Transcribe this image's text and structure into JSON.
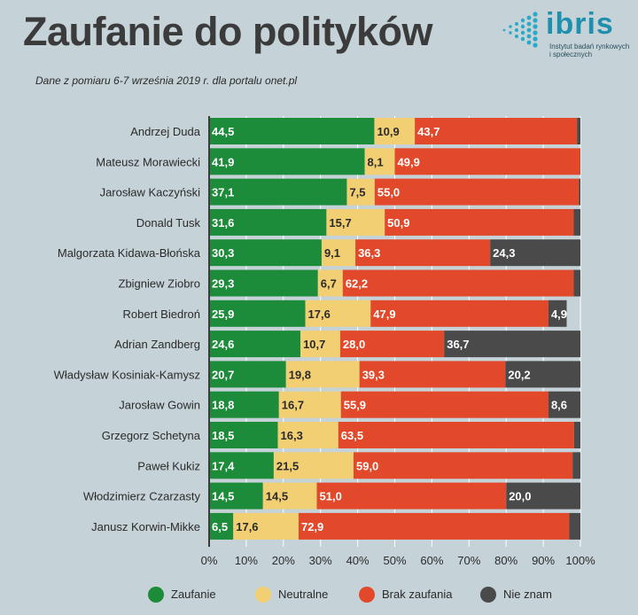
{
  "header": {
    "title": "Zaufanie do polityków",
    "subtitle": "Dane z pomiaru 6-7 września 2019 r. dla portalu onet.pl"
  },
  "logo": {
    "word": "ibris",
    "tagline": "Instytut badań rynkowych i społecznych"
  },
  "chart_data": {
    "type": "bar",
    "orientation": "horizontal",
    "stacked": true,
    "categories": [
      "Andrzej Duda",
      "Mateusz Morawiecki",
      "Jarosław Kaczyński",
      "Donald Tusk",
      "Malgorzata Kidawa-Błońska",
      "Zbigniew Ziobro",
      "Robert Biedroń",
      "Adrian Zandberg",
      "Władysław Kosiniak-Kamysz",
      "Jarosław Gowin",
      "Grzegorz Schetyna",
      "Paweł Kukiz",
      "Włodzimierz Czarzasty",
      "Janusz Korwin-Mikke"
    ],
    "series": [
      {
        "name": "Zaufanie",
        "color": "#1c8c3a",
        "values": [
          44.5,
          41.9,
          37.1,
          31.6,
          30.3,
          29.3,
          25.9,
          24.6,
          20.7,
          18.8,
          18.5,
          17.4,
          14.5,
          6.5
        ]
      },
      {
        "name": "Neutralne",
        "color": "#f1cf72",
        "values": [
          10.9,
          8.1,
          7.5,
          15.7,
          9.1,
          6.7,
          17.6,
          10.7,
          19.8,
          16.7,
          16.3,
          21.5,
          14.5,
          17.6
        ]
      },
      {
        "name": "Brak zaufania",
        "color": "#e2492a",
        "values": [
          43.7,
          49.9,
          55.0,
          50.9,
          36.3,
          62.2,
          47.9,
          28.0,
          39.3,
          55.9,
          63.5,
          59.0,
          51.0,
          72.9
        ]
      },
      {
        "name": "Nie znam",
        "color": "#4a4a4a",
        "values": [
          0.9,
          0.1,
          0.4,
          1.8,
          24.3,
          1.8,
          4.9,
          36.7,
          20.2,
          8.6,
          1.7,
          2.1,
          20.0,
          3.0
        ]
      }
    ],
    "data_labels": [
      [
        "44,5",
        "41,9",
        "37,1",
        "31,6",
        "30,3",
        "29,3",
        "25,9",
        "24,6",
        "20,7",
        "18,8",
        "18,5",
        "17,4",
        "14,5",
        "6,5"
      ],
      [
        "10,9",
        "8,1",
        "7,5",
        "15,7",
        "9,1",
        "6,7",
        "17,6",
        "10,7",
        "19,8",
        "16,7",
        "16,3",
        "21,5",
        "14,5",
        "17,6"
      ],
      [
        "43,7",
        "49,9",
        "55,0",
        "50,9",
        "36,3",
        "62,2",
        "47,9",
        "28,0",
        "39,3",
        "55,9",
        "63,5",
        "59,0",
        "51,0",
        "72,9"
      ],
      [
        "",
        "",
        "",
        "",
        "24,3",
        "",
        "4,9",
        "36,7",
        "20,2",
        "8,6",
        "",
        "",
        "20,0",
        ""
      ]
    ],
    "x_ticks": [
      "0%",
      "10%",
      "20%",
      "30%",
      "40%",
      "50%",
      "60%",
      "70%",
      "80%",
      "90%",
      "100%"
    ],
    "xlim": [
      0,
      100
    ],
    "grid": true,
    "legend_position": "bottom"
  }
}
